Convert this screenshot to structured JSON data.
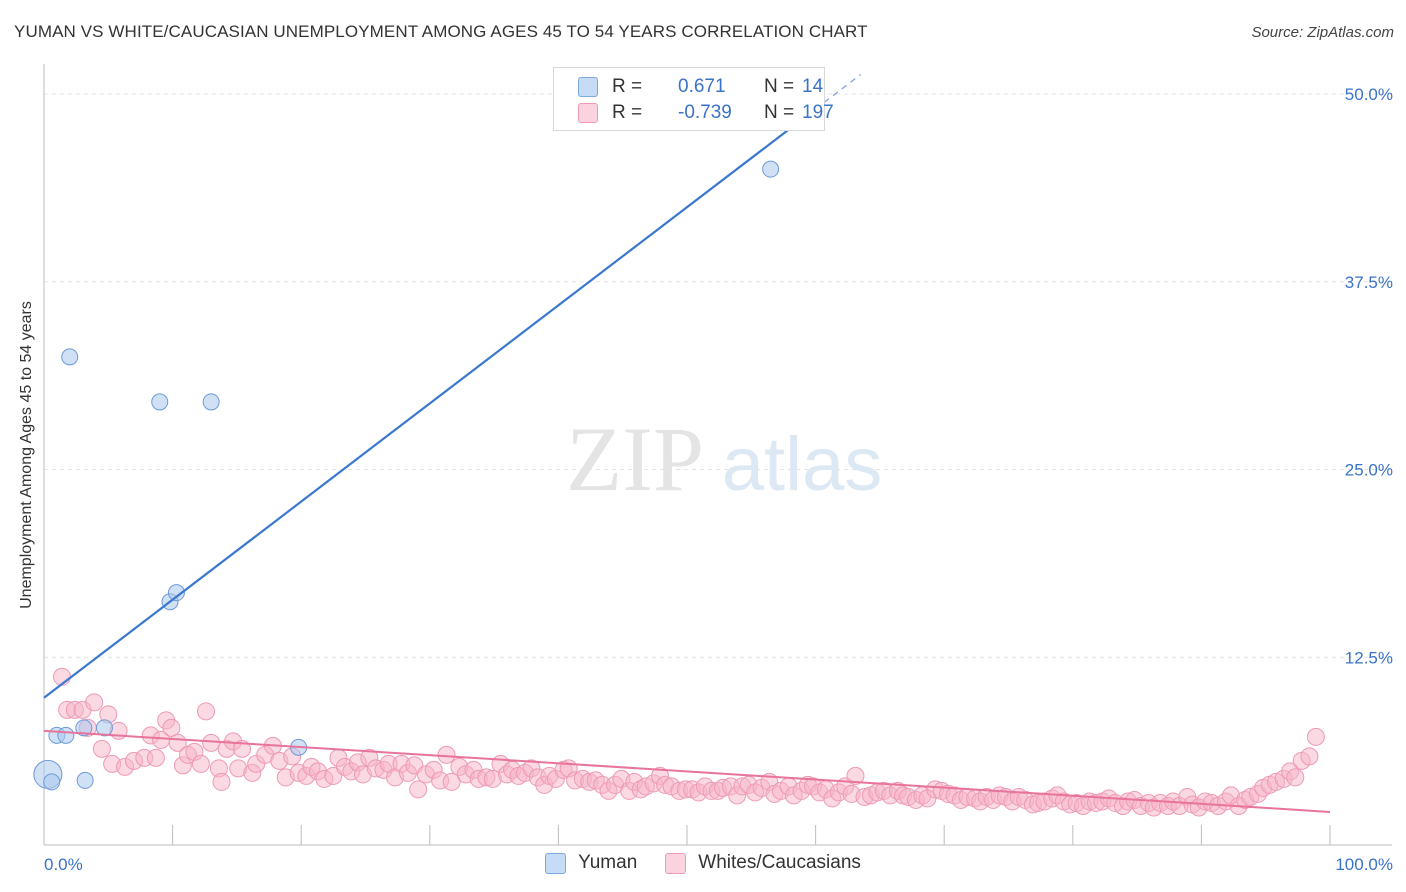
{
  "title": "YUMAN VS WHITE/CAUCASIAN UNEMPLOYMENT AMONG AGES 45 TO 54 YEARS CORRELATION CHART",
  "source": "Source: ZipAtlas.com",
  "watermark": {
    "zip": "ZIP",
    "atlas": "atlas"
  },
  "legend_top": {
    "rows": [
      {
        "r_label": "R =",
        "r_value": "0.671",
        "n_label": "N =",
        "n_value": "14",
        "color": "#a9c8ef"
      },
      {
        "r_label": "R =",
        "r_value": "-0.739",
        "n_label": "N =",
        "n_value": "197",
        "color": "#f6b4c8"
      }
    ]
  },
  "chart_data": {
    "type": "scatter",
    "title": "YUMAN VS WHITE/CAUCASIAN UNEMPLOYMENT AMONG AGES 45 TO 54 YEARS CORRELATION CHART",
    "xlabel": "",
    "ylabel": "Unemployment Among Ages 45 to 54 years",
    "xlim": [
      0,
      100
    ],
    "ylim": [
      0,
      52
    ],
    "x_tick_labels": [
      "0.0%",
      "100.0%"
    ],
    "y_ticks": [
      12.5,
      25.0,
      37.5,
      50.0
    ],
    "y_tick_labels": [
      "12.5%",
      "25.0%",
      "37.5%",
      "50.0%"
    ],
    "grid": true,
    "legend": "bottom-center",
    "series": [
      {
        "name": "Yuman",
        "color": "#a9c8ef",
        "line_color": "#3a78d0",
        "points": [
          [
            0.3,
            4.7,
            11
          ],
          [
            0.6,
            4.2,
            5
          ],
          [
            1.0,
            7.3,
            5
          ],
          [
            1.7,
            7.3,
            5
          ],
          [
            2.0,
            32.5,
            5
          ],
          [
            3.1,
            7.8,
            5
          ],
          [
            3.2,
            4.3,
            5
          ],
          [
            4.7,
            7.8,
            5
          ],
          [
            9.0,
            29.5,
            5
          ],
          [
            9.8,
            16.2,
            5
          ],
          [
            10.3,
            16.8,
            5
          ],
          [
            13.0,
            29.5,
            5
          ],
          [
            19.8,
            6.5,
            5
          ],
          [
            56.5,
            45.0,
            5
          ]
        ],
        "trend": {
          "x0": 0,
          "y0": 9.8,
          "x1": 60,
          "y1": 49.0
        },
        "trend_dashed": {
          "x0": 60,
          "y0": 49.0,
          "x1": 63.5,
          "y1": 51.3
        }
      },
      {
        "name": "Whites/Caucasians",
        "color": "#f6b4c8",
        "line_color": "#e8739b",
        "points": [
          [
            1.4,
            11.2
          ],
          [
            1.8,
            9.0
          ],
          [
            2.4,
            9.0
          ],
          [
            3.0,
            9.0
          ],
          [
            3.4,
            7.8
          ],
          [
            3.9,
            9.5
          ],
          [
            4.5,
            6.4
          ],
          [
            5.0,
            8.7
          ],
          [
            5.3,
            5.4
          ],
          [
            5.8,
            7.6
          ],
          [
            6.3,
            5.2
          ],
          [
            7.0,
            5.6
          ],
          [
            7.8,
            5.8
          ],
          [
            8.3,
            7.3
          ],
          [
            8.7,
            5.8
          ],
          [
            9.1,
            7.0
          ],
          [
            9.5,
            8.3
          ],
          [
            9.9,
            7.8
          ],
          [
            10.4,
            6.8
          ],
          [
            10.8,
            5.3
          ],
          [
            11.2,
            6.0
          ],
          [
            11.7,
            6.2
          ],
          [
            12.2,
            5.4
          ],
          [
            12.6,
            8.9
          ],
          [
            13.0,
            6.8
          ],
          [
            13.6,
            5.1
          ],
          [
            13.8,
            4.2
          ],
          [
            14.2,
            6.4
          ],
          [
            14.7,
            6.9
          ],
          [
            15.1,
            5.1
          ],
          [
            15.4,
            6.4
          ],
          [
            16.2,
            4.8
          ],
          [
            16.5,
            5.4
          ],
          [
            17.2,
            6.0
          ],
          [
            17.8,
            6.6
          ],
          [
            18.3,
            5.6
          ],
          [
            18.8,
            4.5
          ],
          [
            19.3,
            5.9
          ],
          [
            19.8,
            4.8
          ],
          [
            20.4,
            4.6
          ],
          [
            20.8,
            5.2
          ],
          [
            21.3,
            4.9
          ],
          [
            21.8,
            4.4
          ],
          [
            22.5,
            4.6
          ],
          [
            22.9,
            5.8
          ],
          [
            23.4,
            5.2
          ],
          [
            23.9,
            4.9
          ],
          [
            24.4,
            5.5
          ],
          [
            24.8,
            4.7
          ],
          [
            25.3,
            5.8
          ],
          [
            25.8,
            5.1
          ],
          [
            26.4,
            5.0
          ],
          [
            26.8,
            5.4
          ],
          [
            27.3,
            4.5
          ],
          [
            27.8,
            5.4
          ],
          [
            28.3,
            4.8
          ],
          [
            28.8,
            5.3
          ],
          [
            29.1,
            3.7
          ],
          [
            29.7,
            4.7
          ],
          [
            30.3,
            5.0
          ],
          [
            30.8,
            4.3
          ],
          [
            31.3,
            6.0
          ],
          [
            31.7,
            4.2
          ],
          [
            32.3,
            5.2
          ],
          [
            32.8,
            4.7
          ],
          [
            33.4,
            5.0
          ],
          [
            33.8,
            4.4
          ],
          [
            34.4,
            4.5
          ],
          [
            34.9,
            4.4
          ],
          [
            35.5,
            5.4
          ],
          [
            36.0,
            4.7
          ],
          [
            36.4,
            5.0
          ],
          [
            36.9,
            4.6
          ],
          [
            37.4,
            4.8
          ],
          [
            37.9,
            5.1
          ],
          [
            38.4,
            4.5
          ],
          [
            38.9,
            4.0
          ],
          [
            39.3,
            4.6
          ],
          [
            39.8,
            4.4
          ],
          [
            40.4,
            5.0
          ],
          [
            40.8,
            5.1
          ],
          [
            41.3,
            4.3
          ],
          [
            41.9,
            4.4
          ],
          [
            42.4,
            4.2
          ],
          [
            42.9,
            4.3
          ],
          [
            43.4,
            4.0
          ],
          [
            43.9,
            3.6
          ],
          [
            44.4,
            4.0
          ],
          [
            44.9,
            4.4
          ],
          [
            45.5,
            3.6
          ],
          [
            45.9,
            4.2
          ],
          [
            46.4,
            3.7
          ],
          [
            46.8,
            3.9
          ],
          [
            47.4,
            4.1
          ],
          [
            47.9,
            4.6
          ],
          [
            48.3,
            4.0
          ],
          [
            48.8,
            3.9
          ],
          [
            49.4,
            3.6
          ],
          [
            49.9,
            3.7
          ],
          [
            50.4,
            3.7
          ],
          [
            50.9,
            3.5
          ],
          [
            51.4,
            3.9
          ],
          [
            51.9,
            3.6
          ],
          [
            52.4,
            3.6
          ],
          [
            52.8,
            3.8
          ],
          [
            53.4,
            3.9
          ],
          [
            53.9,
            3.3
          ],
          [
            54.3,
            3.9
          ],
          [
            54.8,
            4.0
          ],
          [
            55.3,
            3.5
          ],
          [
            55.8,
            3.8
          ],
          [
            56.4,
            4.2
          ],
          [
            56.8,
            3.4
          ],
          [
            57.3,
            3.6
          ],
          [
            57.9,
            3.9
          ],
          [
            58.3,
            3.3
          ],
          [
            58.9,
            3.6
          ],
          [
            59.4,
            4.0
          ],
          [
            59.8,
            3.9
          ],
          [
            60.3,
            3.5
          ],
          [
            60.8,
            3.7
          ],
          [
            61.3,
            3.1
          ],
          [
            61.8,
            3.5
          ],
          [
            62.3,
            3.9
          ],
          [
            62.8,
            3.4
          ],
          [
            63.1,
            4.6
          ],
          [
            63.8,
            3.2
          ],
          [
            64.3,
            3.3
          ],
          [
            64.8,
            3.5
          ],
          [
            65.3,
            3.6
          ],
          [
            65.8,
            3.3
          ],
          [
            66.4,
            3.6
          ],
          [
            66.8,
            3.3
          ],
          [
            67.2,
            3.2
          ],
          [
            67.8,
            3.0
          ],
          [
            68.3,
            3.3
          ],
          [
            68.7,
            3.1
          ],
          [
            69.3,
            3.7
          ],
          [
            69.8,
            3.6
          ],
          [
            70.3,
            3.4
          ],
          [
            70.8,
            3.3
          ],
          [
            71.3,
            3.0
          ],
          [
            71.8,
            3.2
          ],
          [
            72.4,
            3.1
          ],
          [
            72.8,
            2.9
          ],
          [
            73.3,
            3.2
          ],
          [
            73.8,
            3.0
          ],
          [
            74.3,
            3.3
          ],
          [
            74.8,
            3.2
          ],
          [
            75.3,
            2.9
          ],
          [
            75.8,
            3.2
          ],
          [
            76.3,
            3.0
          ],
          [
            76.9,
            2.7
          ],
          [
            77.3,
            2.8
          ],
          [
            77.8,
            2.9
          ],
          [
            78.4,
            3.1
          ],
          [
            78.8,
            3.3
          ],
          [
            79.3,
            2.9
          ],
          [
            79.8,
            2.7
          ],
          [
            80.3,
            2.8
          ],
          [
            80.8,
            2.6
          ],
          [
            81.3,
            2.9
          ],
          [
            81.8,
            2.8
          ],
          [
            82.3,
            2.9
          ],
          [
            82.8,
            3.1
          ],
          [
            83.3,
            2.8
          ],
          [
            83.9,
            2.6
          ],
          [
            84.3,
            2.9
          ],
          [
            84.8,
            3.0
          ],
          [
            85.3,
            2.6
          ],
          [
            85.9,
            2.8
          ],
          [
            86.3,
            2.5
          ],
          [
            86.8,
            2.8
          ],
          [
            87.4,
            2.6
          ],
          [
            87.8,
            2.9
          ],
          [
            88.3,
            2.6
          ],
          [
            88.9,
            3.2
          ],
          [
            89.3,
            2.7
          ],
          [
            89.8,
            2.5
          ],
          [
            90.3,
            2.9
          ],
          [
            90.8,
            2.8
          ],
          [
            91.3,
            2.6
          ],
          [
            91.9,
            2.9
          ],
          [
            92.3,
            3.3
          ],
          [
            92.9,
            2.6
          ],
          [
            93.4,
            3.0
          ],
          [
            93.8,
            3.2
          ],
          [
            94.4,
            3.4
          ],
          [
            94.8,
            3.8
          ],
          [
            95.3,
            4.0
          ],
          [
            95.8,
            4.2
          ],
          [
            96.4,
            4.4
          ],
          [
            96.9,
            4.9
          ],
          [
            97.3,
            4.5
          ],
          [
            97.8,
            5.6
          ],
          [
            98.4,
            5.9
          ],
          [
            98.9,
            7.2
          ]
        ],
        "trend": {
          "x0": 0,
          "y0": 7.6,
          "x1": 100,
          "y1": 2.2
        }
      }
    ]
  }
}
